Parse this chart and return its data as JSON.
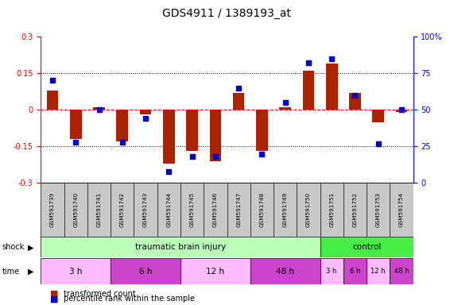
{
  "title": "GDS4911 / 1389193_at",
  "samples": [
    "GSM591739",
    "GSM591740",
    "GSM591741",
    "GSM591742",
    "GSM591743",
    "GSM591744",
    "GSM591745",
    "GSM591746",
    "GSM591747",
    "GSM591748",
    "GSM591749",
    "GSM591750",
    "GSM591751",
    "GSM591752",
    "GSM591753",
    "GSM591754"
  ],
  "red_values": [
    0.08,
    -0.12,
    0.01,
    -0.13,
    -0.02,
    -0.22,
    -0.17,
    -0.21,
    0.07,
    -0.17,
    0.01,
    0.16,
    0.19,
    0.07,
    -0.05,
    -0.01
  ],
  "blue_values": [
    70,
    28,
    50,
    28,
    44,
    8,
    18,
    18,
    65,
    20,
    55,
    82,
    85,
    60,
    27,
    50
  ],
  "ylim_left": [
    -0.3,
    0.3
  ],
  "ylim_right": [
    0,
    100
  ],
  "yticks_left": [
    -0.3,
    -0.15,
    0.0,
    0.15,
    0.3
  ],
  "yticks_right": [
    0,
    25,
    50,
    75,
    100
  ],
  "dotted_lines": [
    -0.15,
    0.15
  ],
  "bar_color": "#aa2200",
  "dot_color": "#0000cc",
  "background_color": "#ffffff",
  "label_bg_color": "#c8c8c8",
  "shock_groups": [
    {
      "label": "traumatic brain injury",
      "start": 0,
      "end": 12,
      "color": "#bbffbb"
    },
    {
      "label": "control",
      "start": 12,
      "end": 16,
      "color": "#44ee44"
    }
  ],
  "time_groups": [
    {
      "label": "3 h",
      "start": 0,
      "end": 4,
      "color": "#ffbbff"
    },
    {
      "label": "6 h",
      "start": 4,
      "end": 8,
      "color": "#dd55dd"
    },
    {
      "label": "12 h",
      "start": 8,
      "end": 12,
      "color": "#ffbbff"
    },
    {
      "label": "48 h",
      "start": 12,
      "end": 16,
      "color": "#dd55dd"
    },
    {
      "label": "3 h",
      "start": 12,
      "end": 13,
      "color": "#ffbbff"
    },
    {
      "label": "6 h",
      "start": 13,
      "end": 14,
      "color": "#dd55dd"
    },
    {
      "label": "12 h",
      "start": 14,
      "end": 15,
      "color": "#ffbbff"
    },
    {
      "label": "48 h",
      "start": 15,
      "end": 16,
      "color": "#dd55dd"
    }
  ],
  "legend_red": "transformed count",
  "legend_blue": "percentile rank within the sample"
}
